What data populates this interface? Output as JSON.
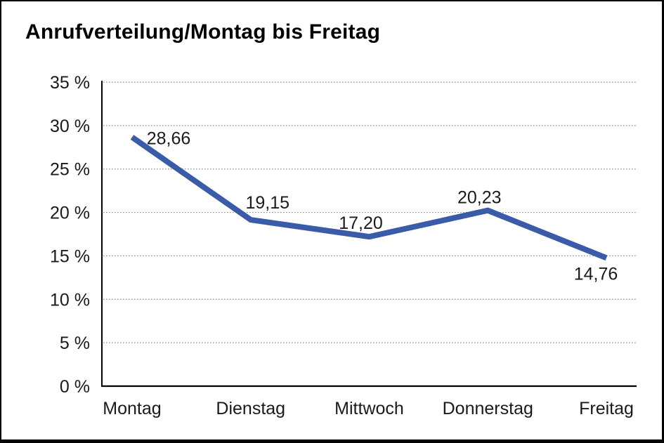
{
  "window": {
    "background": "#ffffff",
    "border_color": "#000000"
  },
  "chart_data": {
    "type": "line",
    "title": "Anrufverteilung/Montag bis Freitag",
    "categories": [
      "Montag",
      "Dienstag",
      "Mittwoch",
      "Donnerstag",
      "Freitag"
    ],
    "series": [
      {
        "values": [
          28.66,
          19.15,
          17.2,
          20.23,
          14.76
        ],
        "point_labels": [
          "28,66",
          "19,15",
          "17,20",
          "20,23",
          "14,76"
        ],
        "line_color": "#3a5ba8"
      }
    ],
    "xlabel": "",
    "ylabel": "",
    "ylim": [
      0,
      35
    ],
    "yticks": [
      0,
      5,
      10,
      15,
      20,
      25,
      30,
      35
    ],
    "ytick_labels": [
      "0 %",
      "5 %",
      "10 %",
      "15 %",
      "20 %",
      "25 %",
      "30 %",
      "35 %"
    ],
    "grid": {
      "horizontal": true,
      "style": "dotted",
      "color": "#8c8c8c"
    },
    "legend": {
      "visible": false
    },
    "axis_color": "#000000",
    "label_color": "#1a1a1a"
  }
}
